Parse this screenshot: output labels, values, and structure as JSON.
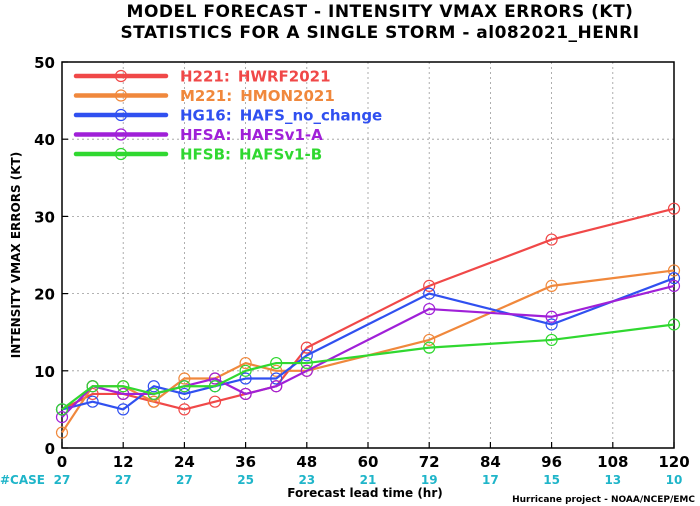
{
  "title": {
    "line1": "MODEL FORECAST - INTENSITY VMAX ERRORS (KT)",
    "line2": "STATISTICS FOR A SINGLE STORM - al082021_HENRI"
  },
  "credit": "Hurricane project - NOAA/NCEP/EMC",
  "case_label": "#CASE",
  "colors": {
    "case": "#1fb5c9",
    "grid": "#9a9a9a"
  },
  "chart_data": {
    "type": "line",
    "xlabel": "Forecast lead time (hr)",
    "ylabel": "INTENSITY VMAX ERRORS (KT)",
    "xlim": [
      0,
      120
    ],
    "ylim": [
      0,
      50
    ],
    "x_ticks": [
      0,
      12,
      24,
      36,
      48,
      60,
      72,
      84,
      96,
      108,
      120
    ],
    "y_ticks": [
      0,
      10,
      20,
      30,
      40,
      50
    ],
    "grid": true,
    "legend_position": "top-left",
    "case_counts": [
      {
        "x": 0,
        "n": 27
      },
      {
        "x": 12,
        "n": 27
      },
      {
        "x": 24,
        "n": 27
      },
      {
        "x": 36,
        "n": 25
      },
      {
        "x": 48,
        "n": 23
      },
      {
        "x": 60,
        "n": 21
      },
      {
        "x": 72,
        "n": 19
      },
      {
        "x": 84,
        "n": 17
      },
      {
        "x": 96,
        "n": 15
      },
      {
        "x": 108,
        "n": 13
      },
      {
        "x": 120,
        "n": 10
      }
    ],
    "series": [
      {
        "code": "H221",
        "name": "HWRF2021",
        "color": "#f04848",
        "x": [
          0,
          6,
          12,
          18,
          24,
          30,
          36,
          42,
          48,
          72,
          96,
          120
        ],
        "y": [
          5,
          7,
          7,
          6,
          5,
          6,
          7,
          8,
          13,
          21,
          27,
          31
        ]
      },
      {
        "code": "M221",
        "name": "HMON2021",
        "color": "#f0883c",
        "x": [
          0,
          6,
          12,
          18,
          24,
          30,
          36,
          42,
          48,
          72,
          96,
          120
        ],
        "y": [
          2,
          8,
          8,
          6,
          9,
          9,
          11,
          10,
          10,
          14,
          21,
          23
        ]
      },
      {
        "code": "HG16",
        "name": "HAFS_no_change",
        "color": "#3050f0",
        "x": [
          0,
          6,
          12,
          18,
          24,
          30,
          36,
          42,
          48,
          72,
          96,
          120
        ],
        "y": [
          5,
          6,
          5,
          8,
          7,
          8,
          9,
          9,
          12,
          20,
          16,
          22
        ]
      },
      {
        "code": "HFSA",
        "name": "HAFSv1-A",
        "color": "#a020d8",
        "x": [
          0,
          6,
          12,
          18,
          24,
          30,
          36,
          42,
          48,
          72,
          96,
          120
        ],
        "y": [
          4,
          8,
          7,
          7,
          8,
          9,
          7,
          8,
          10,
          18,
          17,
          21
        ]
      },
      {
        "code": "HFSB",
        "name": "HAFSv1-B",
        "color": "#30d830",
        "x": [
          0,
          6,
          12,
          18,
          24,
          30,
          36,
          42,
          48,
          72,
          96,
          120
        ],
        "y": [
          5,
          8,
          8,
          7,
          8,
          8,
          10,
          11,
          11,
          13,
          14,
          16
        ]
      }
    ]
  }
}
